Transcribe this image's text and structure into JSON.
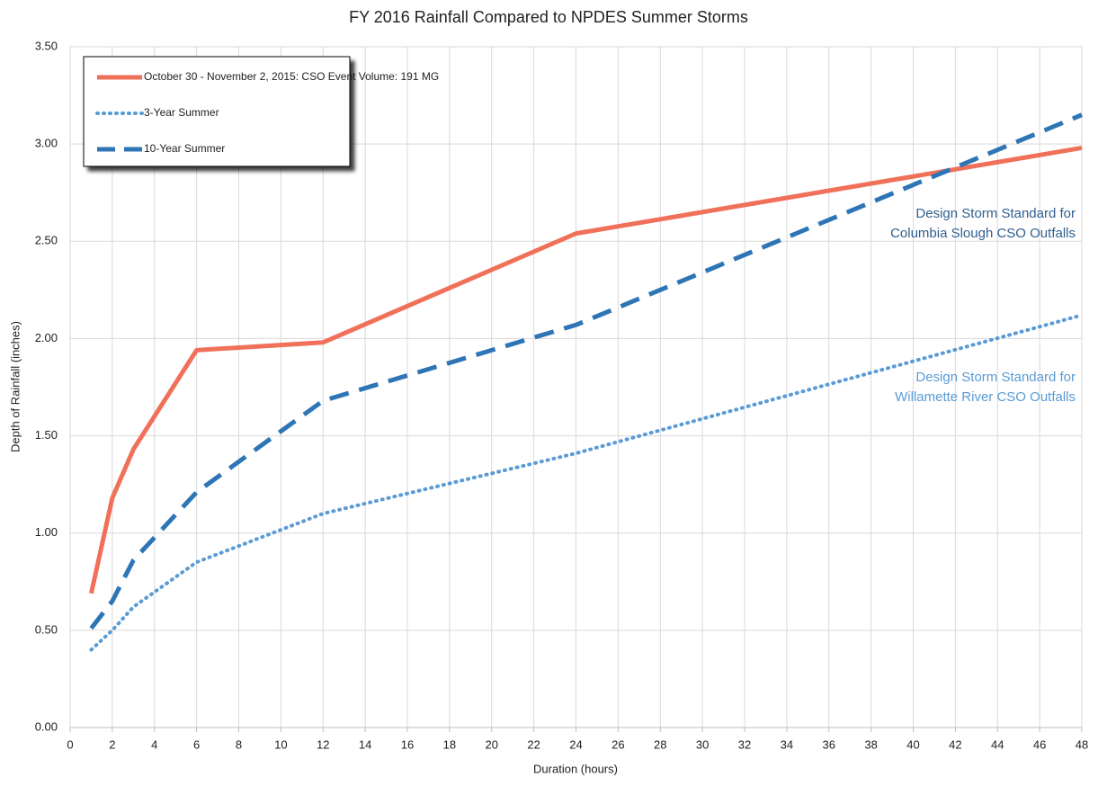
{
  "chart_data": {
    "type": "line",
    "title": "FY 2016 Rainfall Compared to NPDES Summer Storms",
    "x_label": "Duration (hours)",
    "y_label": "Depth of Rainfall (inches)",
    "x": [
      1,
      2,
      3,
      6,
      12,
      24,
      48
    ],
    "series": [
      {
        "name": "October 30 - November 2, 2015: CSO Event Volume: 191 MG",
        "color": "#f07059",
        "style": "solid",
        "values": [
          0.69,
          1.18,
          1.43,
          1.94,
          1.98,
          2.54,
          2.98
        ]
      },
      {
        "name": "3-Year Summer",
        "color": "#5b9bd5",
        "style": "dotted",
        "values": [
          0.4,
          0.5,
          0.62,
          0.85,
          1.1,
          1.41,
          2.12
        ]
      },
      {
        "name": "10-Year Summer",
        "color": "#2e75b6",
        "style": "dashed",
        "values": [
          0.51,
          0.65,
          0.86,
          1.21,
          1.68,
          2.07,
          3.15
        ]
      }
    ],
    "xlim": [
      0,
      48
    ],
    "xticks": [
      0,
      2,
      4,
      6,
      8,
      10,
      12,
      14,
      16,
      18,
      20,
      22,
      24,
      26,
      28,
      30,
      32,
      34,
      36,
      38,
      40,
      42,
      44,
      46,
      48
    ],
    "ylim": [
      0,
      3.5
    ],
    "yticks": [
      {
        "value": 0,
        "label": "0.00"
      },
      {
        "value": 0.5,
        "label": "0.50"
      },
      {
        "value": 1,
        "label": "1.00"
      },
      {
        "value": 1.5,
        "label": "1.50"
      },
      {
        "value": 2,
        "label": "2.00"
      },
      {
        "value": 2.5,
        "label": "2.50"
      },
      {
        "value": 3,
        "label": "3.00"
      },
      {
        "value": 3.5,
        "label": "3.50"
      }
    ],
    "grid": true,
    "legend": "top-left",
    "annotations": [
      {
        "lines": [
          "Design Storm Standard for",
          "Columbia Slough CSO Outfalls"
        ],
        "color": "#2f5f8f"
      },
      {
        "lines": [
          "Design Storm Standard for",
          "Willamette River CSO Outfalls"
        ],
        "color": "#5b9bd5"
      }
    ]
  }
}
